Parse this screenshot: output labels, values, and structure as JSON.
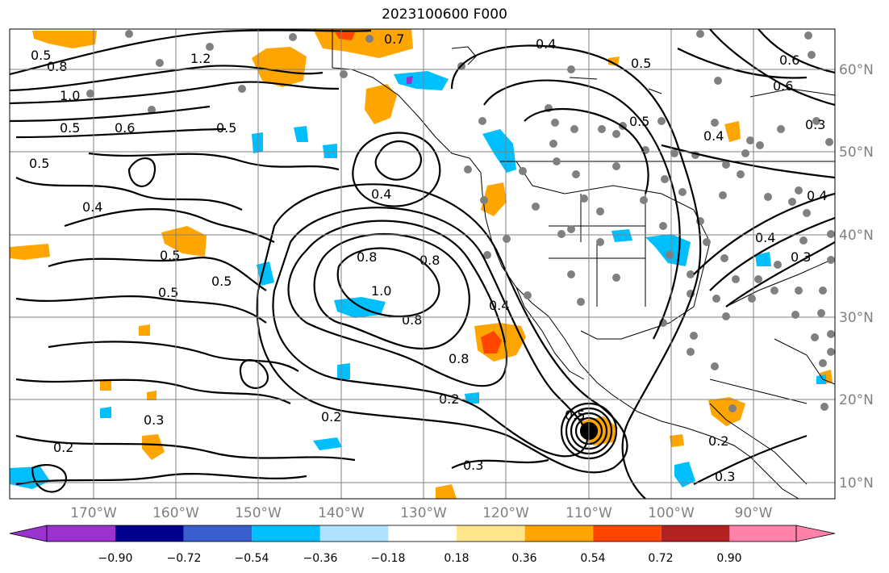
{
  "title": "2023100600 F000",
  "map": {
    "lon_labels": [
      "170°W",
      "160°W",
      "150°W",
      "140°W",
      "130°W",
      "120°W",
      "110°W",
      "100°W",
      "90°W"
    ],
    "lat_labels": [
      "60°N",
      "50°N",
      "40°N",
      "30°N",
      "20°N",
      "10°N"
    ],
    "grid_color": "#808080",
    "contour_labels": [
      "0.5",
      "0.8",
      "1.2",
      "0.7",
      "0.4",
      "0.5",
      "0.6",
      "1.0",
      "0.5",
      "0.6",
      "0.5",
      "0.5",
      "0.4",
      "0.6",
      "0.3",
      "0.5",
      "0.4",
      "0.4",
      "0.5",
      "0.5",
      "0.5",
      "0.8",
      "0.8",
      "1.0",
      "0.8",
      "0.4",
      "0.8",
      "0.2",
      "0.3",
      "0.2",
      "0.3",
      "0.2",
      "0.5",
      "0.2",
      "0.3",
      "0.4",
      "0.3",
      "0.4"
    ]
  },
  "colorbar": {
    "labels": [
      "−0.90",
      "−0.72",
      "−0.54",
      "−0.36",
      "−0.18",
      "0.18",
      "0.36",
      "0.54",
      "0.72",
      "0.90"
    ],
    "colors": [
      "#9a32cd",
      "#00008b",
      "#3a5fcd",
      "#00bfff",
      "#b0e2ff",
      "#ffffff",
      "#ffe68c",
      "#ffa500",
      "#ff4500",
      "#b22222",
      "#ff82ab"
    ]
  }
}
